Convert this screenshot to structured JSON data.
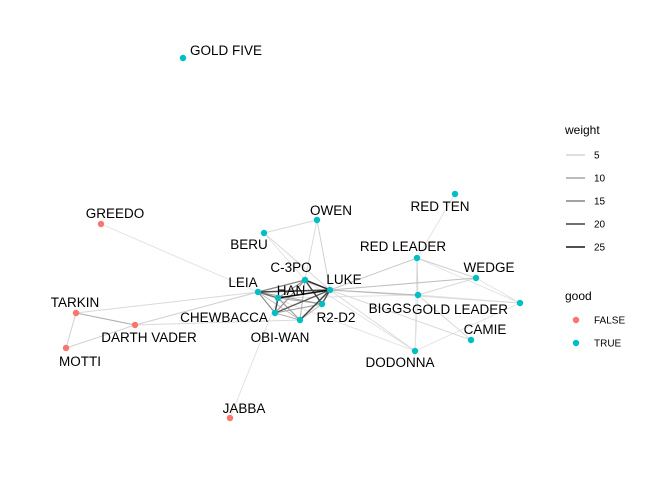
{
  "chart_data": {
    "type": "network",
    "nodes": [
      {
        "id": "GOLD FIVE",
        "good": "TRUE"
      },
      {
        "id": "GREEDO",
        "good": "FALSE"
      },
      {
        "id": "OWEN",
        "good": "TRUE"
      },
      {
        "id": "RED TEN",
        "good": "TRUE"
      },
      {
        "id": "BERU",
        "good": "TRUE"
      },
      {
        "id": "RED LEADER",
        "good": "TRUE"
      },
      {
        "id": "C-3PO",
        "good": "TRUE"
      },
      {
        "id": "WEDGE",
        "good": "TRUE"
      },
      {
        "id": "LEIA",
        "good": "TRUE"
      },
      {
        "id": "LUKE",
        "good": "TRUE"
      },
      {
        "id": "HAN",
        "good": "TRUE"
      },
      {
        "id": "TARKIN",
        "good": "FALSE"
      },
      {
        "id": "BIGGS",
        "good": "TRUE"
      },
      {
        "id": "GOLD LEADER",
        "good": "TRUE"
      },
      {
        "id": "CHEWBACCA",
        "good": "TRUE"
      },
      {
        "id": "R2-D2",
        "good": "TRUE"
      },
      {
        "id": "DARTH VADER",
        "good": "FALSE"
      },
      {
        "id": "CAMIE",
        "good": "TRUE"
      },
      {
        "id": "OBI-WAN",
        "good": "TRUE"
      },
      {
        "id": "MOTTI",
        "good": "FALSE"
      },
      {
        "id": "DODONNA",
        "good": "TRUE"
      },
      {
        "id": "JABBA",
        "good": "FALSE"
      }
    ],
    "edges": [
      {
        "source": "LUKE",
        "target": "HAN",
        "weight": 26
      },
      {
        "source": "LUKE",
        "target": "C-3PO",
        "weight": 22
      },
      {
        "source": "LUKE",
        "target": "LEIA",
        "weight": 20
      },
      {
        "source": "LUKE",
        "target": "R2-D2",
        "weight": 18
      },
      {
        "source": "LUKE",
        "target": "CHEWBACCA",
        "weight": 17
      },
      {
        "source": "HAN",
        "target": "CHEWBACCA",
        "weight": 20
      },
      {
        "source": "HAN",
        "target": "LEIA",
        "weight": 15
      },
      {
        "source": "HAN",
        "target": "C-3PO",
        "weight": 10
      },
      {
        "source": "HAN",
        "target": "R2-D2",
        "weight": 8
      },
      {
        "source": "C-3PO",
        "target": "R2-D2",
        "weight": 20
      },
      {
        "source": "C-3PO",
        "target": "LEIA",
        "weight": 12
      },
      {
        "source": "C-3PO",
        "target": "CHEWBACCA",
        "weight": 10
      },
      {
        "source": "LEIA",
        "target": "CHEWBACCA",
        "weight": 11
      },
      {
        "source": "LEIA",
        "target": "R2-D2",
        "weight": 9
      },
      {
        "source": "CHEWBACCA",
        "target": "R2-D2",
        "weight": 9
      },
      {
        "source": "LUKE",
        "target": "OBI-WAN",
        "weight": 20
      },
      {
        "source": "OBI-WAN",
        "target": "HAN",
        "weight": 9
      },
      {
        "source": "OBI-WAN",
        "target": "C-3PO",
        "weight": 6
      },
      {
        "source": "OBI-WAN",
        "target": "LEIA",
        "weight": 5
      },
      {
        "source": "OBI-WAN",
        "target": "R2-D2",
        "weight": 6
      },
      {
        "source": "OBI-WAN",
        "target": "CHEWBACCA",
        "weight": 7
      },
      {
        "source": "OBI-WAN",
        "target": "DARTH VADER",
        "weight": 2
      },
      {
        "source": "LEIA",
        "target": "DARTH VADER",
        "weight": 3
      },
      {
        "source": "LEIA",
        "target": "TARKIN",
        "weight": 2
      },
      {
        "source": "LEIA",
        "target": "GREEDO",
        "weight": 1
      },
      {
        "source": "DARTH VADER",
        "target": "TARKIN",
        "weight": 7
      },
      {
        "source": "DARTH VADER",
        "target": "MOTTI",
        "weight": 3
      },
      {
        "source": "TARKIN",
        "target": "MOTTI",
        "weight": 3
      },
      {
        "source": "OWEN",
        "target": "BERU",
        "weight": 2
      },
      {
        "source": "OWEN",
        "target": "LUKE",
        "weight": 3
      },
      {
        "source": "OWEN",
        "target": "C-3PO",
        "weight": 2
      },
      {
        "source": "BERU",
        "target": "LUKE",
        "weight": 2
      },
      {
        "source": "BERU",
        "target": "C-3PO",
        "weight": 1
      },
      {
        "source": "LUKE",
        "target": "RED LEADER",
        "weight": 4
      },
      {
        "source": "LUKE",
        "target": "BIGGS",
        "weight": 6
      },
      {
        "source": "LUKE",
        "target": "WEDGE",
        "weight": 5
      },
      {
        "source": "LUKE",
        "target": "GOLD LEADER",
        "weight": 2
      },
      {
        "source": "LUKE",
        "target": "DODONNA",
        "weight": 2
      },
      {
        "source": "LUKE",
        "target": "CAMIE",
        "weight": 2
      },
      {
        "source": "RED LEADER",
        "target": "BIGGS",
        "weight": 3
      },
      {
        "source": "RED LEADER",
        "target": "WEDGE",
        "weight": 3
      },
      {
        "source": "RED LEADER",
        "target": "GOLD LEADER",
        "weight": 1
      },
      {
        "source": "RED LEADER",
        "target": "DODONNA",
        "weight": 1
      },
      {
        "source": "RED LEADER",
        "target": "RED TEN",
        "weight": 1
      },
      {
        "source": "BIGGS",
        "target": "WEDGE",
        "weight": 2
      },
      {
        "source": "BIGGS",
        "target": "GOLD LEADER",
        "weight": 1
      },
      {
        "source": "BIGGS",
        "target": "DODONNA",
        "weight": 1
      },
      {
        "source": "BIGGS",
        "target": "CAMIE",
        "weight": 2
      },
      {
        "source": "WEDGE",
        "target": "GOLD LEADER",
        "weight": 1
      },
      {
        "source": "GOLD LEADER",
        "target": "DODONNA",
        "weight": 1
      },
      {
        "source": "HAN",
        "target": "BIGGS",
        "weight": 1
      },
      {
        "source": "LEIA",
        "target": "DODONNA",
        "weight": 1
      },
      {
        "source": "C-3PO",
        "target": "DODONNA",
        "weight": 1
      },
      {
        "source": "HAN",
        "target": "JABBA",
        "weight": 1
      }
    ],
    "legend": {
      "weight": {
        "title": "weight",
        "labels": [
          "5",
          "10",
          "15",
          "20",
          "25"
        ],
        "values": [
          5,
          10,
          15,
          20,
          25
        ]
      },
      "good": {
        "title": "good",
        "labels": [
          "FALSE",
          "TRUE"
        ]
      }
    },
    "colors": {
      "FALSE": "#F8766D",
      "TRUE": "#00BFC4"
    }
  }
}
